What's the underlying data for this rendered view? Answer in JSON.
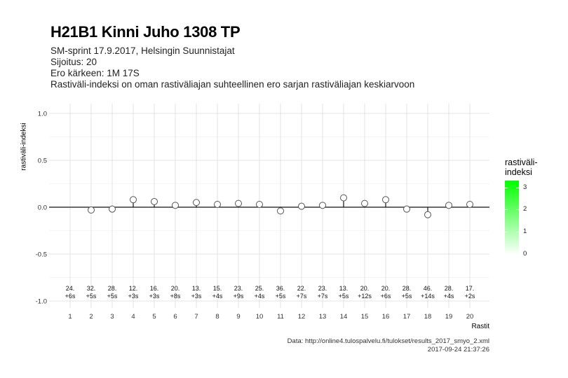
{
  "header": {
    "title": "H21B1 Kinni Juho 1308 TP",
    "line1": "SM-sprint 17.9.2017, Helsingin Suunnistajat",
    "line2": "Sijoitus: 20",
    "line3": "Ero kärkeen: 1M 17S",
    "line4": "Rastiväli-indeksi on oman rastiväliajan suhteellinen ero sarjan rastiväliajan keskiarvoon"
  },
  "legend": {
    "title_line1": "rastiväli-",
    "title_line2": "indeksi",
    "ticks": [
      "3",
      "2",
      "1",
      "0"
    ],
    "color_high": "#00ff00",
    "color_low": "#ffffff"
  },
  "caption": {
    "source": "Data: http://online4.tulospalvelu.fi/tulokset/results_2017_smyo_2.xml",
    "timestamp": "2017-09-24 21:37:26"
  },
  "chart_data": {
    "type": "scatter",
    "xlabel": "Rastit",
    "ylabel": "rastiväli-indeksi",
    "ylim": [
      -1.0,
      1.0
    ],
    "yticks": [
      "1.0",
      "0.5",
      "0.0",
      "-0.5",
      "-1.0"
    ],
    "grid": true,
    "x": [
      1,
      2,
      3,
      4,
      5,
      6,
      7,
      8,
      9,
      10,
      11,
      12,
      13,
      14,
      15,
      16,
      17,
      18,
      19,
      20
    ],
    "x_tick_labels": [
      "1",
      "2",
      "3",
      "4",
      "5",
      "6",
      "7",
      "8",
      "9",
      "10",
      "11",
      "12",
      "13",
      "14",
      "15",
      "16",
      "17",
      "18",
      "19",
      "20"
    ],
    "y": [
      null,
      -0.03,
      -0.02,
      0.08,
      0.06,
      0.02,
      0.05,
      0.03,
      0.04,
      0.03,
      -0.04,
      0.01,
      0.02,
      0.1,
      0.04,
      0.08,
      -0.02,
      -0.08,
      0.02,
      0.03
    ],
    "rank_labels": [
      "24.",
      "32.",
      "28.",
      "12.",
      "16.",
      "20.",
      "13.",
      "15.",
      "23.",
      "25.",
      "36.",
      "22.",
      "23.",
      "13.",
      "20.",
      "20.",
      "28.",
      "46.",
      "28.",
      "17."
    ],
    "diff_labels": [
      "+6s",
      "+5s",
      "+5s",
      "+3s",
      "+3s",
      "+8s",
      "+3s",
      "+4s",
      "+9s",
      "+4s",
      "+5s",
      "+7s",
      "+7s",
      "+5s",
      "+12s",
      "+6s",
      "+5s",
      "+14s",
      "+4s",
      "+2s"
    ],
    "zero_line": true,
    "legend_position": "right"
  }
}
